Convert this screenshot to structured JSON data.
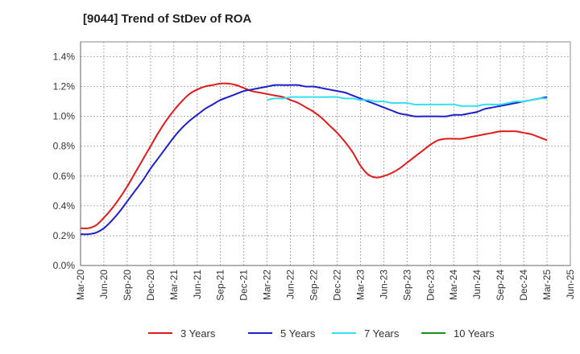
{
  "chart_data": {
    "type": "line",
    "title": "[9044]  Trend of StDev of ROA",
    "xlabel": "",
    "ylabel": "",
    "x_ticks": [
      "Mar-20",
      "Jun-20",
      "Sep-20",
      "Dec-20",
      "Mar-21",
      "Jun-21",
      "Sep-21",
      "Dec-21",
      "Mar-22",
      "Jun-22",
      "Sep-22",
      "Dec-22",
      "Mar-23",
      "Jun-23",
      "Sep-23",
      "Dec-23",
      "Mar-24",
      "Jun-24",
      "Sep-24",
      "Dec-24",
      "Mar-25",
      "Jun-25"
    ],
    "y_ticks": [
      "0.0%",
      "0.2%",
      "0.4%",
      "0.6%",
      "0.8%",
      "1.0%",
      "1.2%",
      "1.4%"
    ],
    "ylim": [
      0,
      1.5
    ],
    "y_unit": "%",
    "grid": true,
    "legend_position": "bottom",
    "series": [
      {
        "name": "3 Years",
        "color": "#e31a1c",
        "x": [
          "Mar-20",
          "Apr-20",
          "May-20",
          "Jun-20",
          "Jul-20",
          "Aug-20",
          "Sep-20",
          "Oct-20",
          "Nov-20",
          "Dec-20",
          "Jan-21",
          "Feb-21",
          "Mar-21",
          "Apr-21",
          "May-21",
          "Jun-21",
          "Jul-21",
          "Aug-21",
          "Sep-21",
          "Oct-21",
          "Nov-21",
          "Dec-21",
          "Jan-22",
          "Feb-22",
          "Mar-22",
          "Apr-22",
          "May-22",
          "Jun-22",
          "Jul-22",
          "Aug-22",
          "Sep-22",
          "Oct-22",
          "Nov-22",
          "Dec-22",
          "Jan-23",
          "Feb-23",
          "Mar-23",
          "Apr-23",
          "May-23",
          "Jun-23",
          "Jul-23",
          "Aug-23",
          "Sep-23",
          "Oct-23",
          "Nov-23",
          "Dec-23",
          "Jan-24",
          "Feb-24",
          "Mar-24",
          "Apr-24",
          "May-24",
          "Jun-24",
          "Jul-24",
          "Aug-24",
          "Sep-24",
          "Oct-24",
          "Nov-24",
          "Dec-24",
          "Jan-25",
          "Feb-25",
          "Mar-25"
        ],
        "values": [
          0.25,
          0.25,
          0.27,
          0.32,
          0.38,
          0.45,
          0.53,
          0.62,
          0.71,
          0.8,
          0.89,
          0.97,
          1.04,
          1.1,
          1.15,
          1.18,
          1.2,
          1.21,
          1.22,
          1.22,
          1.21,
          1.19,
          1.17,
          1.16,
          1.15,
          1.14,
          1.13,
          1.11,
          1.09,
          1.06,
          1.03,
          0.99,
          0.94,
          0.89,
          0.83,
          0.76,
          0.67,
          0.61,
          0.59,
          0.6,
          0.62,
          0.65,
          0.69,
          0.73,
          0.77,
          0.81,
          0.84,
          0.85,
          0.85,
          0.85,
          0.86,
          0.87,
          0.88,
          0.89,
          0.9,
          0.9,
          0.9,
          0.89,
          0.88,
          0.86,
          0.84
        ]
      },
      {
        "name": "5 Years",
        "color": "#1f1fcc",
        "x": [
          "Mar-20",
          "Apr-20",
          "May-20",
          "Jun-20",
          "Jul-20",
          "Aug-20",
          "Sep-20",
          "Oct-20",
          "Nov-20",
          "Dec-20",
          "Jan-21",
          "Feb-21",
          "Mar-21",
          "Apr-21",
          "May-21",
          "Jun-21",
          "Jul-21",
          "Aug-21",
          "Sep-21",
          "Oct-21",
          "Nov-21",
          "Dec-21",
          "Jan-22",
          "Feb-22",
          "Mar-22",
          "Apr-22",
          "May-22",
          "Jun-22",
          "Jul-22",
          "Aug-22",
          "Sep-22",
          "Oct-22",
          "Nov-22",
          "Dec-22",
          "Jan-23",
          "Feb-23",
          "Mar-23",
          "Apr-23",
          "May-23",
          "Jun-23",
          "Jul-23",
          "Aug-23",
          "Sep-23",
          "Oct-23",
          "Nov-23",
          "Dec-23",
          "Jan-24",
          "Feb-24",
          "Mar-24",
          "Apr-24",
          "May-24",
          "Jun-24",
          "Jul-24",
          "Aug-24",
          "Sep-24",
          "Oct-24",
          "Nov-24",
          "Dec-24",
          "Jan-25",
          "Feb-25",
          "Mar-25"
        ],
        "values": [
          0.21,
          0.21,
          0.22,
          0.25,
          0.3,
          0.36,
          0.43,
          0.5,
          0.57,
          0.65,
          0.72,
          0.79,
          0.86,
          0.92,
          0.97,
          1.01,
          1.05,
          1.08,
          1.11,
          1.13,
          1.15,
          1.17,
          1.18,
          1.19,
          1.2,
          1.21,
          1.21,
          1.21,
          1.21,
          1.2,
          1.2,
          1.19,
          1.18,
          1.17,
          1.16,
          1.14,
          1.12,
          1.1,
          1.08,
          1.06,
          1.04,
          1.02,
          1.01,
          1.0,
          1.0,
          1.0,
          1.0,
          1.0,
          1.01,
          1.01,
          1.02,
          1.03,
          1.05,
          1.06,
          1.07,
          1.08,
          1.09,
          1.1,
          1.11,
          1.12,
          1.13
        ]
      },
      {
        "name": "7 Years",
        "color": "#33e0f0",
        "x": [
          "Mar-22",
          "Apr-22",
          "May-22",
          "Jun-22",
          "Jul-22",
          "Aug-22",
          "Sep-22",
          "Oct-22",
          "Nov-22",
          "Dec-22",
          "Jan-23",
          "Feb-23",
          "Mar-23",
          "Apr-23",
          "May-23",
          "Jun-23",
          "Jul-23",
          "Aug-23",
          "Sep-23",
          "Oct-23",
          "Nov-23",
          "Dec-23",
          "Jan-24",
          "Feb-24",
          "Mar-24",
          "Apr-24",
          "May-24",
          "Jun-24",
          "Jul-24",
          "Aug-24",
          "Sep-24",
          "Oct-24",
          "Nov-24",
          "Dec-24",
          "Jan-25",
          "Feb-25",
          "Mar-25"
        ],
        "values": [
          1.11,
          1.12,
          1.12,
          1.13,
          1.13,
          1.13,
          1.13,
          1.13,
          1.13,
          1.13,
          1.12,
          1.12,
          1.11,
          1.11,
          1.1,
          1.1,
          1.09,
          1.09,
          1.09,
          1.08,
          1.08,
          1.08,
          1.08,
          1.08,
          1.08,
          1.07,
          1.07,
          1.07,
          1.08,
          1.08,
          1.08,
          1.09,
          1.1,
          1.1,
          1.11,
          1.12,
          1.12
        ]
      },
      {
        "name": "10 Years",
        "color": "#1e8c1e",
        "x": [],
        "values": []
      }
    ]
  }
}
